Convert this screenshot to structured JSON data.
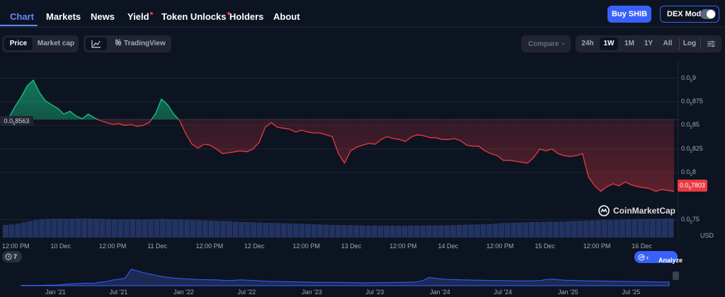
{
  "nav": {
    "items": [
      "Chart",
      "Markets",
      "News",
      "Yield",
      "Token Unlocks",
      "Holders",
      "About"
    ],
    "buy_label": "Buy SHIB",
    "dex_label": "DEX Mode"
  },
  "toolbar": {
    "price_label": "Price",
    "market_cap_label": "Market cap",
    "tradingview_label": "TradingView",
    "compare_label": "Compare",
    "ranges": [
      "24h",
      "1W",
      "1M",
      "1Y",
      "All"
    ],
    "selected_range": "1W",
    "log_label": "Log"
  },
  "chart_data": {
    "type": "line",
    "y_axis_ticks": [
      {
        "lead": "0.0",
        "sub": "5",
        "tail": "9",
        "value": 9e-06
      },
      {
        "lead": "0.0",
        "sub": "5",
        "tail": "875",
        "value": 8.75e-06
      },
      {
        "lead": "0.0",
        "sub": "5",
        "tail": "85",
        "value": 8.5e-06
      },
      {
        "lead": "0.0",
        "sub": "5",
        "tail": "825",
        "value": 8.25e-06
      },
      {
        "lead": "0.0",
        "sub": "5",
        "tail": "8",
        "value": 8e-06
      },
      {
        "lead": "0.0",
        "sub": "5",
        "tail": "75",
        "value": 7.5e-06
      }
    ],
    "x_axis_ticks": [
      "12:00 PM",
      "10 Dec",
      "12:00 PM",
      "11 Dec",
      "12:00 PM",
      "12 Dec",
      "12:00 PM",
      "13 Dec",
      "12:00 PM",
      "14 Dec",
      "12:00 PM",
      "15 Dec",
      "12:00 PM",
      "16 Dec"
    ],
    "unit": "USD",
    "open_price": {
      "lead": "0.0",
      "sub": "5",
      "tail": "8563",
      "value": 8.563e-06
    },
    "current_price": {
      "lead": "0.0",
      "sub": "5",
      "tail": "7803",
      "value": 7.803e-06
    },
    "price_series": [
      8.55e-06,
      8.58e-06,
      8.7e-06,
      8.8e-06,
      8.92e-06,
      8.98e-06,
      8.85e-06,
      8.76e-06,
      8.72e-06,
      8.68e-06,
      8.62e-06,
      8.65e-06,
      8.6e-06,
      8.57e-06,
      8.62e-06,
      8.58e-06,
      8.55e-06,
      8.53e-06,
      8.51e-06,
      8.52e-06,
      8.5e-06,
      8.51e-06,
      8.49e-06,
      8.5e-06,
      8.53e-06,
      8.62e-06,
      8.78e-06,
      8.72e-06,
      8.62e-06,
      8.55e-06,
      8.41e-06,
      8.3e-06,
      8.26e-06,
      8.3e-06,
      8.29e-06,
      8.25e-06,
      8.2e-06,
      8.21e-06,
      8.22e-06,
      8.23e-06,
      8.22e-06,
      8.25e-06,
      8.32e-06,
      8.48e-06,
      8.53e-06,
      8.48e-06,
      8.47e-06,
      8.46e-06,
      8.43e-06,
      8.45e-06,
      8.43e-06,
      8.42e-06,
      8.42e-06,
      8.4e-06,
      8.38e-06,
      8.2e-06,
      8.1e-06,
      8.23e-06,
      8.27e-06,
      8.29e-06,
      8.31e-06,
      8.3e-06,
      8.35e-06,
      8.38e-06,
      8.36e-06,
      8.35e-06,
      8.33e-06,
      8.38e-06,
      8.4e-06,
      8.39e-06,
      8.37e-06,
      8.37e-06,
      8.35e-06,
      8.35e-06,
      8.36e-06,
      8.34e-06,
      8.29e-06,
      8.28e-06,
      8.28e-06,
      8.23e-06,
      8.2e-06,
      8.18e-06,
      8.13e-06,
      8.13e-06,
      8.12e-06,
      8.11e-06,
      8.1e-06,
      8.16e-06,
      8.25e-06,
      8.23e-06,
      8.25e-06,
      8.2e-06,
      8.18e-06,
      8.17e-06,
      8.18e-06,
      8.2e-06,
      7.95e-06,
      7.86e-06,
      7.8e-06,
      7.85e-06,
      7.88e-06,
      7.86e-06,
      7.9e-06,
      7.87e-06,
      7.85e-06,
      7.84e-06,
      7.83e-06,
      7.8e-06,
      7.82e-06,
      7.81e-06,
      7.8e-06
    ],
    "volume_series": [
      0.6,
      0.62,
      0.66,
      0.72,
      0.78,
      0.82,
      0.86,
      0.88,
      0.89,
      0.89,
      0.88,
      0.89,
      0.9,
      0.9,
      0.89,
      0.89,
      0.88,
      0.87,
      0.86,
      0.86,
      0.86,
      0.86,
      0.85,
      0.85,
      0.86,
      0.87,
      0.88,
      0.87,
      0.86,
      0.85,
      0.84,
      0.83,
      0.82,
      0.81,
      0.8,
      0.79,
      0.78,
      0.77,
      0.75,
      0.74,
      0.73,
      0.72,
      0.71,
      0.7,
      0.7,
      0.69,
      0.68,
      0.67,
      0.66,
      0.65,
      0.64,
      0.63,
      0.62,
      0.61,
      0.6,
      0.6,
      0.59,
      0.59,
      0.58,
      0.58,
      0.57,
      0.57,
      0.56,
      0.56,
      0.56,
      0.56,
      0.56,
      0.57,
      0.57,
      0.57,
      0.58,
      0.58,
      0.58,
      0.58,
      0.59,
      0.6,
      0.61,
      0.62,
      0.62,
      0.63,
      0.64,
      0.66,
      0.68,
      0.69,
      0.7,
      0.71,
      0.72,
      0.73,
      0.74,
      0.74,
      0.75,
      0.75,
      0.76,
      0.77,
      0.78,
      0.79,
      0.8,
      0.81,
      0.82,
      0.83,
      0.83,
      0.84,
      0.85,
      0.86,
      0.87,
      0.88,
      0.88,
      0.88,
      0.88,
      0.89,
      0.9
    ],
    "navigator_ticks": [
      "Jan '21",
      "Jul '21",
      "Jan '22",
      "Jul '22",
      "Jan '23",
      "Jul '23",
      "Jan '24",
      "Jul '24",
      "Jan '25",
      "Jul '25"
    ],
    "navigator_series": [
      0.02,
      0.02,
      0.02,
      0.02,
      0.03,
      0.03,
      0.05,
      0.08,
      0.1,
      0.12,
      0.14,
      0.12,
      0.18,
      0.22,
      0.3,
      0.35,
      0.4,
      0.9,
      0.8,
      0.7,
      0.62,
      0.55,
      0.48,
      0.44,
      0.4,
      0.38,
      0.36,
      0.34,
      0.33,
      0.32,
      0.32,
      0.3,
      0.28,
      0.3,
      0.32,
      0.3,
      0.28,
      0.26,
      0.24,
      0.23,
      0.22,
      0.22,
      0.21,
      0.2,
      0.2,
      0.19,
      0.18,
      0.18,
      0.18,
      0.18,
      0.17,
      0.17,
      0.16,
      0.15,
      0.16,
      0.16,
      0.17,
      0.17,
      0.18,
      0.18,
      0.19,
      0.2,
      0.28,
      0.45,
      0.4,
      0.36,
      0.34,
      0.33,
      0.32,
      0.31,
      0.3,
      0.3,
      0.29,
      0.28,
      0.28,
      0.27,
      0.27,
      0.26,
      0.26,
      0.27,
      0.28,
      0.33,
      0.36,
      0.32,
      0.3,
      0.29,
      0.28,
      0.27,
      0.26,
      0.26,
      0.25,
      0.24,
      0.24,
      0.23,
      0.23,
      0.22,
      0.22,
      0.21,
      0.2,
      0.2,
      0.2
    ]
  },
  "watermark": "CoinMarketCap",
  "history_count": "7",
  "analyze_label": "Analyze",
  "colors": {
    "up": "#16c784",
    "down": "#ea3943",
    "accent": "#3861fb",
    "background": "#0d1421"
  }
}
